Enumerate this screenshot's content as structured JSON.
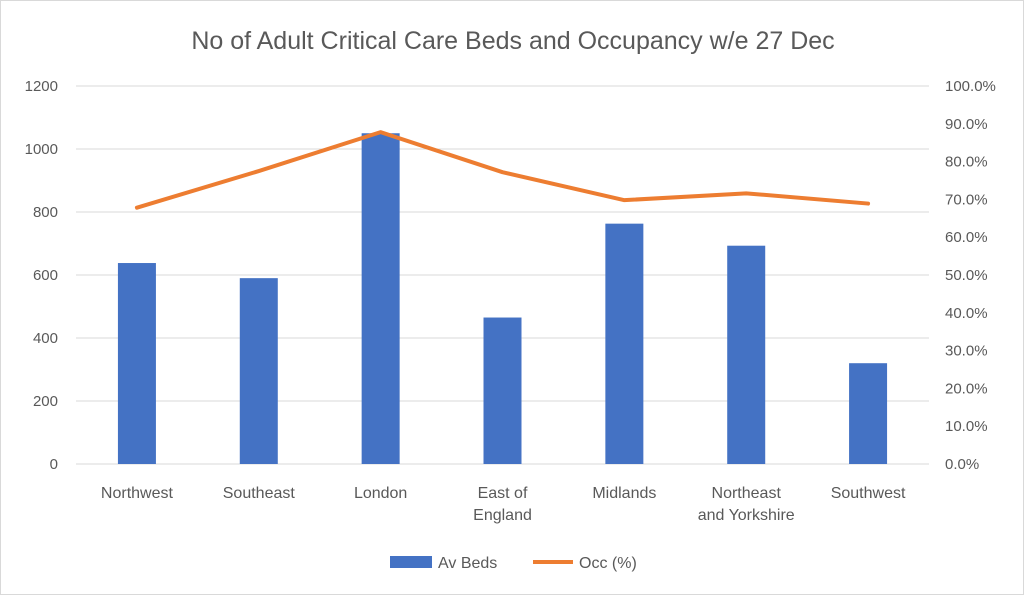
{
  "chart_data": {
    "type": "bar",
    "title": "No of Adult Critical Care Beds and Occupancy w/e 27 Dec",
    "categories": [
      [
        "Northwest"
      ],
      [
        "Southeast"
      ],
      [
        "London"
      ],
      [
        "East of",
        "England"
      ],
      [
        "Midlands"
      ],
      [
        "Northeast",
        "and Yorkshire"
      ],
      [
        "Southwest"
      ]
    ],
    "y_left": {
      "min": 0,
      "max": 1200,
      "step": 200,
      "tick_labels": [
        "0",
        "200",
        "400",
        "600",
        "800",
        "1000",
        "1200"
      ]
    },
    "y_right": {
      "min": 0,
      "max": 100,
      "step": 10,
      "tick_labels": [
        "0.0%",
        "10.0%",
        "20.0%",
        "30.0%",
        "40.0%",
        "50.0%",
        "60.0%",
        "70.0%",
        "80.0%",
        "90.0%",
        "100.0%"
      ]
    },
    "series": [
      {
        "name": "Av Beds",
        "type": "bar",
        "axis": "left",
        "color": "#4472c4",
        "values": [
          638,
          590,
          1050,
          465,
          763,
          693,
          320
        ]
      },
      {
        "name": "Occ (%)",
        "type": "line",
        "axis": "right",
        "color": "#ed7d31",
        "values": [
          67.8,
          77.5,
          87.8,
          77.2,
          69.8,
          71.6,
          68.9
        ]
      }
    ],
    "grid": true,
    "legend_position": "bottom"
  }
}
